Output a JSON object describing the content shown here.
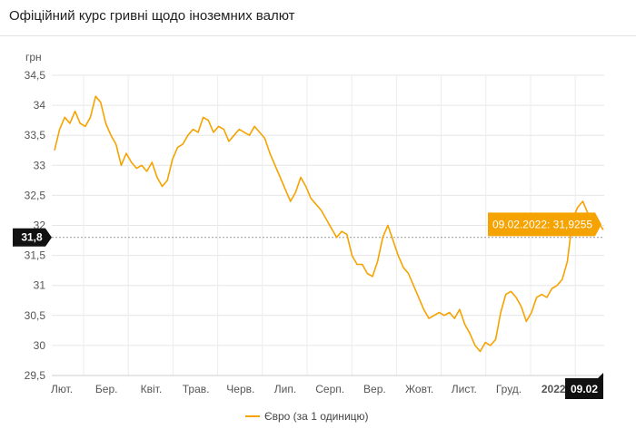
{
  "header": {
    "title": "Офіційний курс гривні щодо іноземних валют"
  },
  "chart_data": {
    "type": "line",
    "title": "Офіційний курс гривні щодо іноземних валют",
    "ylabel": "грн",
    "xlabel": "",
    "ylim": [
      29.5,
      34.5
    ],
    "yticks": [
      29.5,
      30,
      30.5,
      31,
      31.5,
      32,
      32.5,
      33,
      33.5,
      34,
      34.5
    ],
    "ytick_labels": [
      "29,5",
      "30",
      "30,5",
      "31",
      "31,5",
      "32",
      "32,5",
      "33",
      "33,5",
      "34",
      "34,5"
    ],
    "xticks": [
      "Лют.",
      "Бер.",
      "Квіт.",
      "Трав.",
      "Черв.",
      "Лип.",
      "Серп.",
      "Вер.",
      "Жовт.",
      "Лист.",
      "Груд.",
      "2022"
    ],
    "grid": true,
    "legend_position": "bottom-center",
    "color": "#f5a300",
    "series": [
      {
        "name": "Євро (за 1 одиницю)",
        "values": [
          33.25,
          33.6,
          33.8,
          33.7,
          33.9,
          33.7,
          33.65,
          33.8,
          34.15,
          34.05,
          33.7,
          33.5,
          33.35,
          33.0,
          33.2,
          33.05,
          32.95,
          33.0,
          32.9,
          33.05,
          32.8,
          32.65,
          32.75,
          33.1,
          33.3,
          33.35,
          33.5,
          33.6,
          33.55,
          33.8,
          33.75,
          33.55,
          33.65,
          33.6,
          33.4,
          33.5,
          33.6,
          33.55,
          33.5,
          33.65,
          33.55,
          33.45,
          33.2,
          33.0,
          32.8,
          32.6,
          32.4,
          32.55,
          32.8,
          32.65,
          32.45,
          32.35,
          32.25,
          32.1,
          31.95,
          31.8,
          31.9,
          31.85,
          31.5,
          31.35,
          31.35,
          31.2,
          31.15,
          31.4,
          31.8,
          32.0,
          31.75,
          31.5,
          31.3,
          31.2,
          31.0,
          30.8,
          30.6,
          30.45,
          30.5,
          30.55,
          30.5,
          30.55,
          30.45,
          30.6,
          30.35,
          30.2,
          30.0,
          29.9,
          30.05,
          30.0,
          30.1,
          30.55,
          30.85,
          30.9,
          30.8,
          30.65,
          30.4,
          30.55,
          30.8,
          30.85,
          30.8,
          30.95,
          31.0,
          31.1,
          31.4,
          32.1,
          32.3,
          32.4,
          32.2,
          32.15,
          32.05,
          31.9255
        ]
      }
    ],
    "tooltip": {
      "date": "09.02.2022",
      "value": "31,9255",
      "label": "09.02.2022: 31,9255"
    },
    "crosshair": {
      "y_label": "31,8",
      "x_label": "09.02"
    }
  }
}
